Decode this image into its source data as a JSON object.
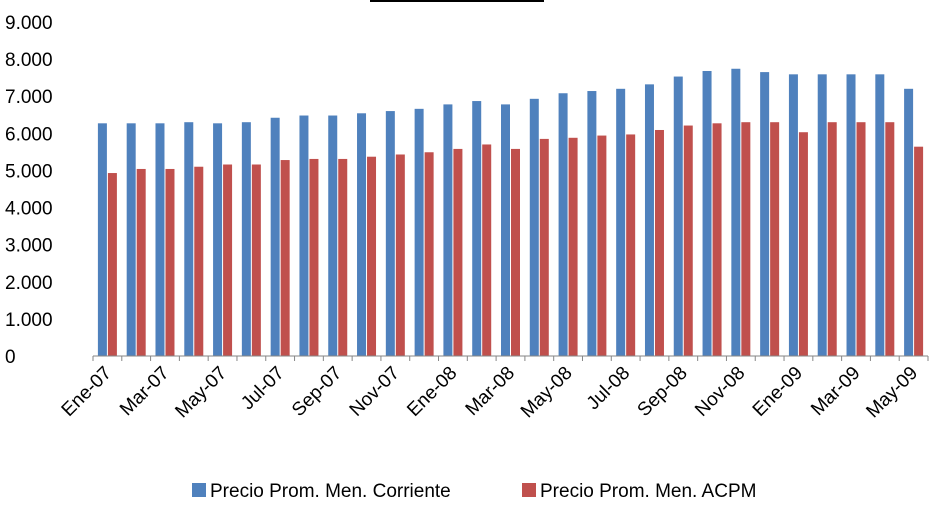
{
  "chart_data": {
    "type": "bar",
    "title": "",
    "xlabel": "",
    "ylabel": "",
    "ylim": [
      0,
      9000
    ],
    "yticks": [
      0,
      1000,
      2000,
      3000,
      4000,
      5000,
      6000,
      7000,
      8000,
      9000
    ],
    "ytick_labels": [
      "0",
      "1.000",
      "2.000",
      "3.000",
      "4.000",
      "5.000",
      "6.000",
      "7.000",
      "8.000",
      "9.000"
    ],
    "categories": [
      "Ene-07",
      "Feb-07",
      "Mar-07",
      "Abr-07",
      "May-07",
      "Jun-07",
      "Jul-07",
      "Ago-07",
      "Sep-07",
      "Oct-07",
      "Nov-07",
      "Dic-07",
      "Ene-08",
      "Feb-08",
      "Mar-08",
      "Abr-08",
      "May-08",
      "Jun-08",
      "Jul-08",
      "Ago-08",
      "Sep-08",
      "Oct-08",
      "Nov-08",
      "Dic-08",
      "Ene-09",
      "Feb-09",
      "Mar-09",
      "Abr-09",
      "May-09"
    ],
    "x_tick_labels": [
      "Ene-07",
      "Mar-07",
      "May-07",
      "Jul-07",
      "Sep-07",
      "Nov-07",
      "Ene-08",
      "Mar-08",
      "May-08",
      "Jul-08",
      "Sep-08",
      "Nov-08",
      "Ene-09",
      "Mar-09",
      "May-09"
    ],
    "series": [
      {
        "name": "Precio Prom. Men. Corriente",
        "color": "#4F81BD",
        "values": [
          6270,
          6270,
          6270,
          6300,
          6270,
          6300,
          6420,
          6480,
          6480,
          6540,
          6600,
          6660,
          6780,
          6870,
          6780,
          6930,
          7080,
          7140,
          7200,
          7320,
          7530,
          7680,
          7740,
          7650,
          7590,
          7590,
          7590,
          7590,
          7200
        ]
      },
      {
        "name": "Precio Prom. Men. ACPM",
        "color": "#C0504D",
        "values": [
          4930,
          5040,
          5040,
          5100,
          5160,
          5160,
          5280,
          5310,
          5310,
          5370,
          5430,
          5490,
          5580,
          5700,
          5580,
          5850,
          5880,
          5940,
          5970,
          6090,
          6210,
          6270,
          6300,
          6300,
          6030,
          6300,
          6300,
          6300,
          5640
        ]
      }
    ],
    "legend_position": "bottom",
    "grid": false
  }
}
